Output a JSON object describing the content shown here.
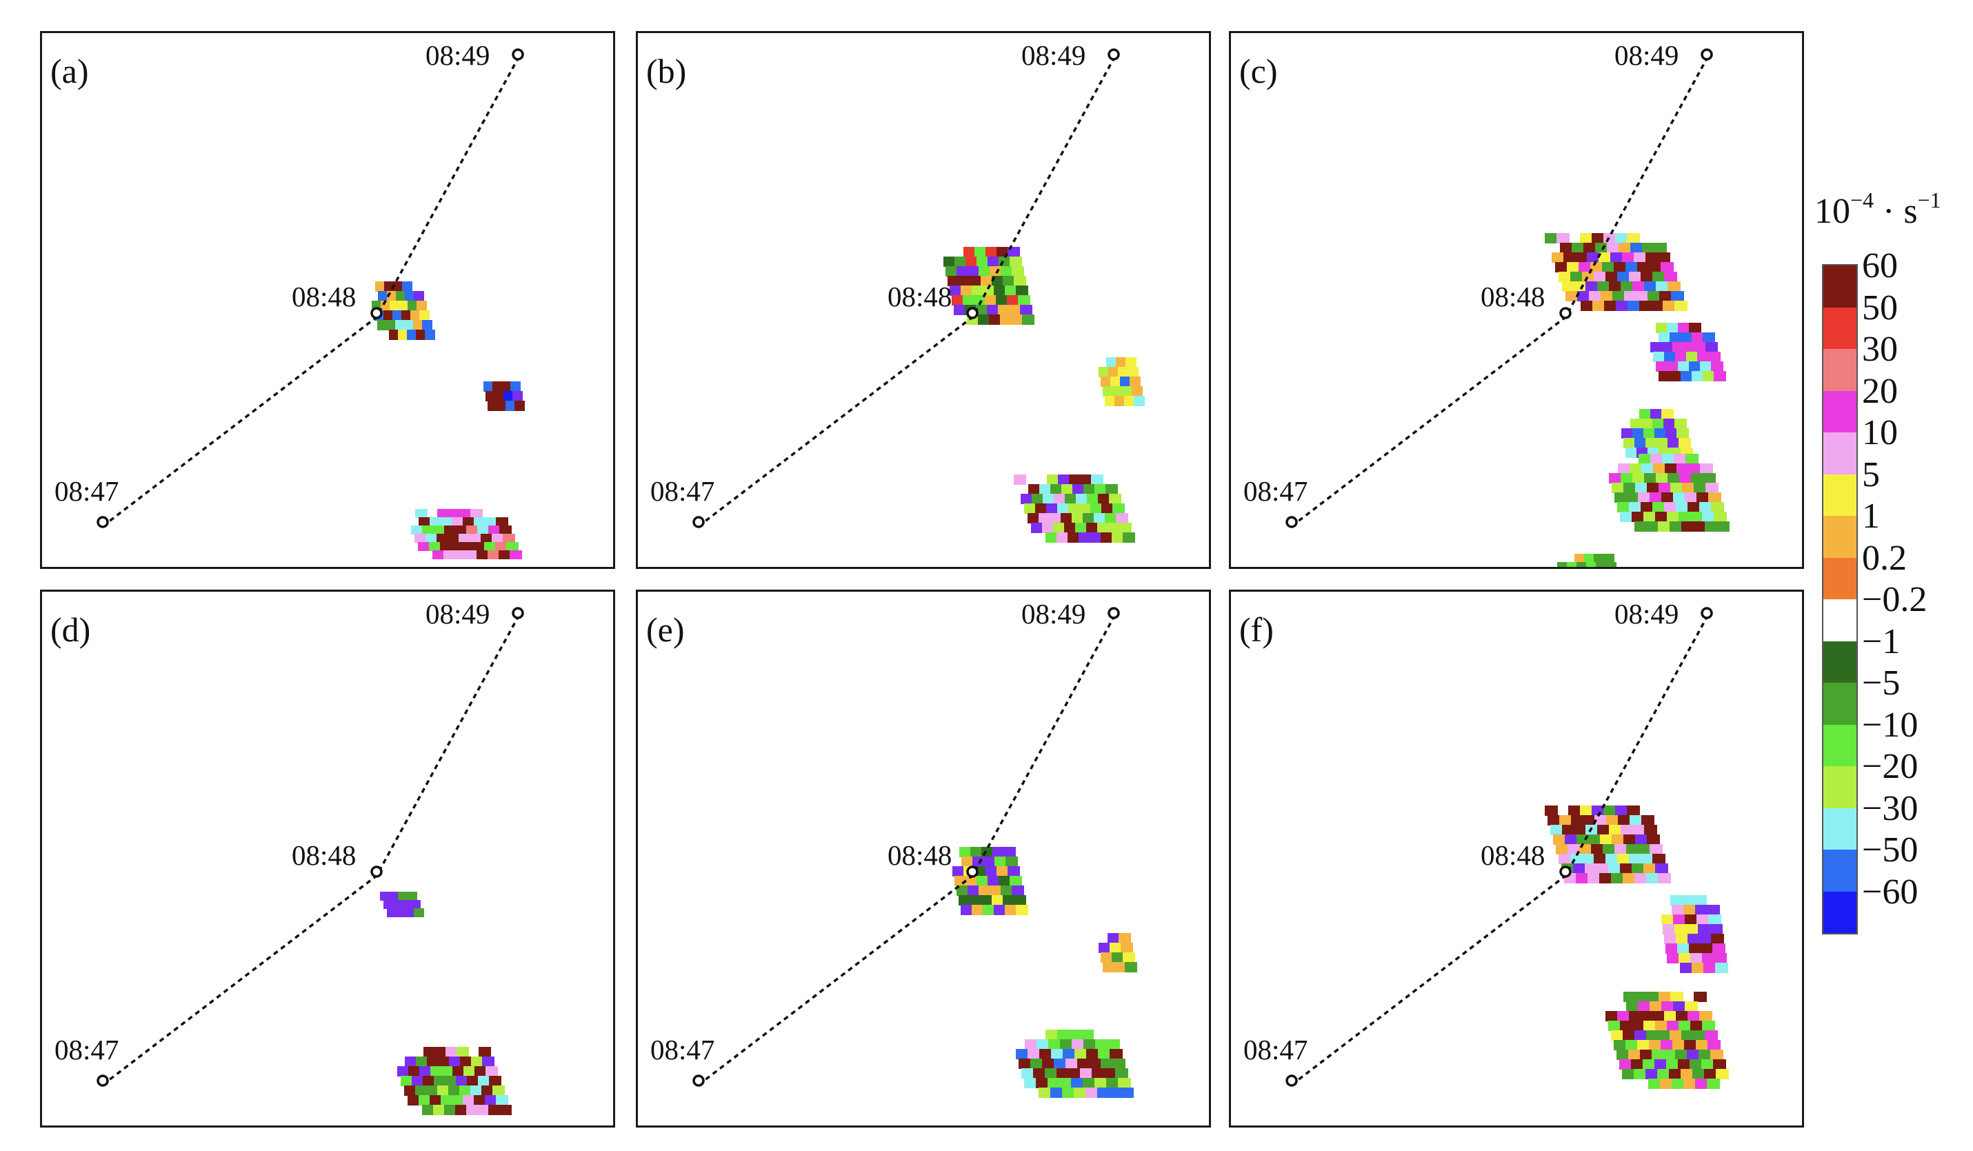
{
  "figure": {
    "panels": [
      {
        "id": "a",
        "label": "(a)",
        "times": [
          "08:47",
          "08:48",
          "08:49"
        ]
      },
      {
        "id": "b",
        "label": "(b)",
        "times": [
          "08:47",
          "08:48",
          "08:49"
        ]
      },
      {
        "id": "c",
        "label": "(c)",
        "times": [
          "08:47",
          "08:48",
          "08:49"
        ]
      },
      {
        "id": "d",
        "label": "(d)",
        "times": [
          "08:47",
          "08:48",
          "08:49"
        ]
      },
      {
        "id": "e",
        "label": "(e)",
        "times": [
          "08:47",
          "08:48",
          "08:49"
        ]
      },
      {
        "id": "f",
        "label": "(f)",
        "times": [
          "08:47",
          "08:48",
          "08:49"
        ]
      }
    ]
  },
  "colorbar": {
    "unit_base": "10",
    "unit_exp1": "−4",
    "unit_mid": " · s",
    "unit_exp2": "−1",
    "ticks": [
      "60",
      "50",
      "30",
      "20",
      "10",
      "5",
      "1",
      "0.2",
      "−0.2",
      "−1",
      "−5",
      "−10",
      "−20",
      "−30",
      "−50",
      "−60"
    ],
    "colors": [
      "#7a1a12",
      "#e8382f",
      "#f07d7d",
      "#e83ce0",
      "#f0a8ee",
      "#f5f040",
      "#f5b440",
      "#ee7a30",
      "#ffffff",
      "#2e6b1f",
      "#48a42e",
      "#66e83c",
      "#b4ee40",
      "#8cf0f0",
      "#2f6ef0",
      "#1a1af5"
    ]
  },
  "chart_data": {
    "type": "heatmap",
    "title": "",
    "colorbar_label": "10^-4 · s^-1",
    "colorbar_levels": [
      60,
      50,
      30,
      20,
      10,
      5,
      1,
      0.2,
      -0.2,
      -1,
      -5,
      -10,
      -20,
      -30,
      -50,
      -60
    ],
    "track_times": [
      "08:47",
      "08:48",
      "08:49"
    ],
    "panels": [
      "(a)",
      "(b)",
      "(c)",
      "(d)",
      "(e)",
      "(f)"
    ]
  }
}
